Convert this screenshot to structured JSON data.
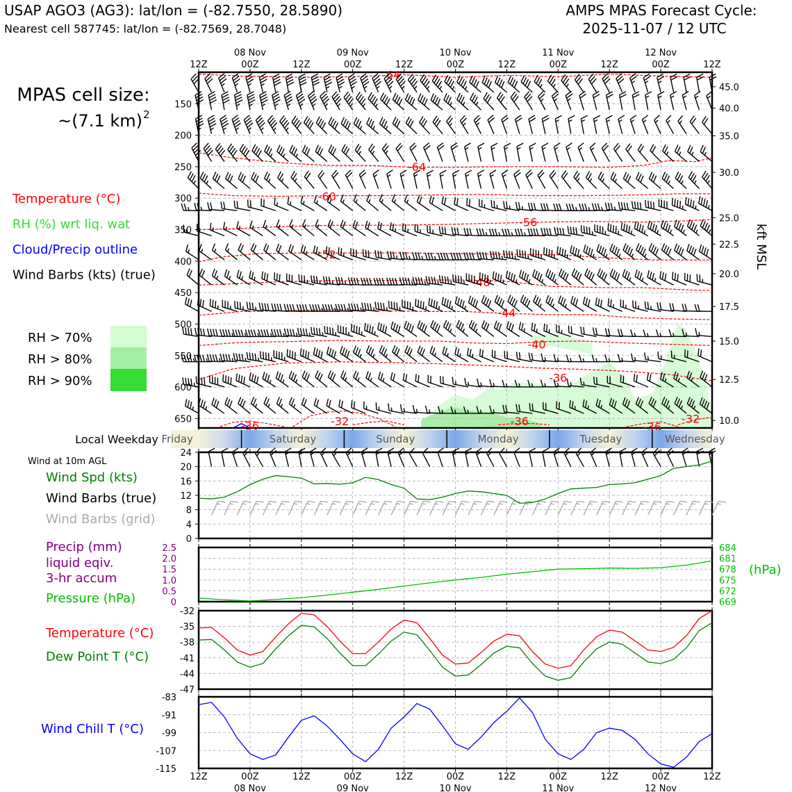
{
  "header": {
    "station_line": "USAP AGO3 (AG3): lat/lon = (-82.7550, 28.5890)",
    "cell_line": "Nearest cell 587745: lat/lon = (-82.7569, 28.7048)",
    "forecast_title": "AMPS MPAS Forecast Cycle:",
    "forecast_cycle": "2025-11-07 / 12 UTC"
  },
  "cell_size": {
    "label": "MPAS cell size:",
    "value": "~(7.1 km)",
    "exponent": "2"
  },
  "time_axis": {
    "hour_labels": [
      "12Z",
      "00Z",
      "12Z",
      "00Z",
      "12Z",
      "00Z",
      "12Z",
      "00Z",
      "12Z",
      "00Z",
      "12Z"
    ],
    "date_labels": [
      "08 Nov",
      "09 Nov",
      "10 Nov",
      "11 Nov",
      "12 Nov"
    ],
    "date_label_indices": [
      1,
      3,
      5,
      7,
      9
    ],
    "start": 0,
    "end": 120,
    "step": 12
  },
  "upper_panel": {
    "legend": [
      {
        "text": "Temperature (°C)",
        "color": "#ff0000"
      },
      {
        "text": "RH (%) wrt liq. wat",
        "color": "#33dd33"
      },
      {
        "text": "Cloud/Precip outline",
        "color": "#0000ff"
      },
      {
        "text": "Wind Barbs (kts) (true)",
        "color": "#000000"
      }
    ],
    "rh_legend": [
      {
        "text": "RH > 70%",
        "color": "#d2fcd2"
      },
      {
        "text": "RH > 80%",
        "color": "#a3eea3"
      },
      {
        "text": "RH > 90%",
        "color": "#33dd33"
      }
    ],
    "pressure_ticks": [
      150,
      200,
      250,
      300,
      350,
      400,
      450,
      500,
      550,
      600,
      650
    ],
    "pressure_range": [
      100,
      665
    ],
    "height_ticks": [
      {
        "kft": "45.0",
        "p": 123
      },
      {
        "kft": "40.0",
        "p": 157
      },
      {
        "kft": "35.0",
        "p": 201
      },
      {
        "kft": "30.0",
        "p": 259
      },
      {
        "kft": "25.0",
        "p": 331
      },
      {
        "kft": "22.5",
        "p": 373
      },
      {
        "kft": "20.0",
        "p": 420
      },
      {
        "kft": "17.5",
        "p": 472
      },
      {
        "kft": "15.0",
        "p": 527
      },
      {
        "kft": "12.5",
        "p": 588
      },
      {
        "kft": "10.0",
        "p": 653
      }
    ],
    "height_axis_label": "kft MSL",
    "temperature_contours": [
      {
        "label": "-64",
        "x": [
          0,
          10,
          24,
          36,
          48,
          60,
          72,
          84,
          96,
          108,
          120
        ],
        "p": [
          103,
          106,
          108,
          107,
          104,
          108,
          105,
          107,
          103,
          106,
          108
        ],
        "label_at": [
          45,
          104
        ]
      },
      {
        "label": "-64",
        "x": [
          0,
          8,
          20,
          30,
          40,
          50,
          60,
          70,
          84,
          96,
          104,
          110,
          116,
          120
        ],
        "p": [
          228,
          236,
          244,
          248,
          248,
          251,
          251,
          250,
          250,
          251,
          248,
          240,
          242,
          236
        ],
        "label_at": [
          51,
          250
        ]
      },
      {
        "label": "-60",
        "x": [
          0,
          8,
          18,
          30,
          42,
          54,
          66,
          78,
          90,
          102,
          112,
          120
        ],
        "p": [
          292,
          296,
          297,
          296,
          296,
          295,
          294,
          296,
          296,
          295,
          293,
          293
        ],
        "label_at": [
          30,
          297
        ]
      },
      {
        "label": "-56",
        "x": [
          0,
          10,
          20,
          32,
          44,
          56,
          68,
          80,
          92,
          104,
          114,
          120
        ],
        "p": [
          350,
          348,
          345,
          343,
          343,
          342,
          340,
          338,
          337,
          338,
          336,
          334
        ],
        "label_at": [
          77,
          338
        ]
      },
      {
        "label": "-52",
        "x": [
          0,
          6,
          14,
          24,
          36,
          48,
          60,
          72,
          84,
          96,
          106,
          114,
          120
        ],
        "p": [
          401,
          393,
          388,
          387,
          387,
          387,
          388,
          389,
          390,
          395,
          398,
          398,
          398
        ],
        "label_at": [
          30,
          389
        ]
      },
      {
        "label": "-48",
        "x": [
          0,
          8,
          18,
          30,
          42,
          52,
          62,
          72,
          82,
          94,
          104,
          112,
          120
        ],
        "p": [
          438,
          436,
          433,
          431,
          431,
          430,
          430,
          432,
          440,
          442,
          442,
          445,
          447
        ],
        "label_at": [
          66,
          433
        ]
      },
      {
        "label": "-44",
        "x": [
          0,
          10,
          20,
          32,
          44,
          54,
          62,
          72,
          82,
          92,
          102,
          112,
          120
        ],
        "p": [
          486,
          480,
          479,
          477,
          479,
          480,
          480,
          483,
          485,
          485,
          490,
          492,
          493
        ],
        "label_at": [
          72,
          482
        ]
      },
      {
        "label": "-40",
        "x": [
          0,
          10,
          20,
          32,
          44,
          56,
          64,
          72,
          80,
          90,
          100,
          110,
          120
        ],
        "p": [
          534,
          529,
          528,
          526,
          527,
          527,
          530,
          531,
          528,
          527,
          530,
          532,
          534
        ],
        "label_at": [
          79,
          532
        ]
      },
      {
        "label": "-36",
        "x": [
          0,
          8,
          20,
          32,
          44,
          56,
          68,
          80,
          90,
          100,
          110,
          120
        ],
        "p": [
          588,
          571,
          562,
          560,
          561,
          563,
          566,
          570,
          572,
          575,
          580,
          590
        ],
        "label_at": [
          84,
          585
        ]
      },
      {
        "label": "-36",
        "x": [
          5,
          8,
          12,
          16,
          20
        ],
        "p": [
          663,
          656,
          654,
          658,
          663
        ],
        "label_at": [
          12,
          661
        ]
      },
      {
        "label": "-32",
        "x": [
          22,
          26,
          30,
          34,
          38,
          42,
          46
        ],
        "p": [
          663,
          646,
          640,
          638,
          642,
          650,
          663
        ],
        "label_at": [
          33,
          654
        ]
      },
      {
        "label": "-36",
        "x": [
          70,
          74,
          78,
          82
        ],
        "p": [
          660,
          658,
          658,
          660
        ],
        "label_at": [
          75,
          654
        ]
      },
      {
        "label": "-36",
        "x": [
          100,
          104,
          108,
          112
        ],
        "p": [
          663,
          658,
          655,
          663
        ],
        "label_at": [
          106,
          663
        ]
      },
      {
        "label": "-32",
        "x": [
          112,
          116,
          120
        ],
        "p": [
          660,
          652,
          648
        ],
        "label_at": [
          115,
          650
        ]
      },
      {
        "label": "",
        "x": [
          36,
          40,
          44,
          48
        ],
        "p": [
          660,
          656,
          654,
          660
        ],
        "label_at": [
          40,
          663
        ]
      }
    ],
    "rh_regions": [
      {
        "level": 70,
        "x": [
          52,
          56,
          60,
          64,
          68,
          70,
          74,
          80,
          86,
          90,
          96,
          100,
          102,
          106,
          108,
          112,
          114,
          116,
          118,
          120
        ],
        "p_top": [
          655,
          630,
          612,
          620,
          600,
          605,
          592,
          596,
          600,
          583,
          560,
          588,
          620,
          610,
          580,
          500,
          510,
          540,
          580,
          640
        ],
        "p_bot": [
          665,
          665,
          665,
          665,
          665,
          665,
          665,
          665,
          665,
          665,
          665,
          665,
          665,
          665,
          665,
          665,
          665,
          665,
          665,
          665
        ]
      },
      {
        "level": 70,
        "x": [
          78,
          82,
          86,
          90,
          92
        ],
        "p": [
          520,
          515,
          520,
          525,
          530
        ]
      },
      {
        "level": 80,
        "x": [
          52,
          56,
          60,
          64,
          68,
          72,
          76,
          80
        ],
        "p_top": [
          652,
          640,
          632,
          638,
          640,
          648,
          650,
          658
        ],
        "p_bot": [
          665,
          665,
          665,
          665,
          665,
          665,
          665,
          665
        ]
      }
    ]
  },
  "weekday_bar": {
    "label": "Local Weekday",
    "days": [
      "Friday",
      "Saturday",
      "Sunday",
      "Monday",
      "Tuesday",
      "Wednesday"
    ],
    "day_boundaries": [
      10,
      34,
      58,
      82,
      106
    ]
  },
  "wind_panel": {
    "title": "Wind at 10m AGL",
    "legend": [
      {
        "text": "Wind Spd (kts)",
        "color": "#008000"
      },
      {
        "text": "Wind Barbs (true)",
        "color": "#000000"
      },
      {
        "text": "Wind Barbs (grid)",
        "color": "#aaaaaa"
      }
    ],
    "yticks": [
      0,
      4,
      8,
      12,
      16,
      20,
      24
    ],
    "ylim": [
      0,
      24
    ],
    "x": [
      0,
      3,
      6,
      9,
      12,
      15,
      18,
      21,
      24,
      27,
      30,
      33,
      36,
      39,
      42,
      45,
      48,
      51,
      54,
      57,
      60,
      63,
      66,
      69,
      72,
      75,
      78,
      81,
      84,
      87,
      90,
      93,
      96,
      99,
      102,
      105,
      108,
      111,
      114,
      117,
      120
    ],
    "speed": [
      11.2,
      11,
      11.5,
      13,
      15,
      16.5,
      17.5,
      17.2,
      16.8,
      15.2,
      15.3,
      15.1,
      15.5,
      17,
      16.4,
      15,
      14,
      11,
      10.8,
      11.5,
      12.5,
      13.2,
      13,
      12.5,
      12,
      9.8,
      10,
      11,
      12.5,
      13.8,
      14,
      14.2,
      15,
      15.2,
      15.5,
      16.5,
      17.5,
      19.5,
      20,
      20.5,
      21.5
    ]
  },
  "precip_panel": {
    "legend": [
      {
        "text": "Precip (mm)",
        "color": "#800080"
      },
      {
        "text": "liquid eqiv.",
        "color": "#800080"
      },
      {
        "text": "3-hr accum",
        "color": "#800080"
      },
      {
        "text": "Pressure (hPa)",
        "color": "#00c000"
      }
    ],
    "precip_ticks": [
      "2.5",
      "2.0",
      "1.5",
      "1.0",
      "0.5",
      "0"
    ],
    "precip_range": [
      0,
      2.5
    ],
    "pressure_ticks": [
      684,
      681,
      678,
      675,
      672,
      669
    ],
    "pressure_range": [
      669,
      684
    ],
    "pressure_unit": "(hPa)",
    "x": [
      0,
      6,
      12,
      18,
      24,
      30,
      36,
      42,
      48,
      54,
      60,
      66,
      72,
      78,
      84,
      90,
      96,
      102,
      108,
      114,
      120
    ],
    "pressure": [
      670,
      669.5,
      669.2,
      669.6,
      670.1,
      670.8,
      671.6,
      672.4,
      673.3,
      674.2,
      675,
      675.7,
      676.6,
      677.3,
      678,
      678.1,
      678.3,
      678.2,
      678.4,
      679.1,
      680.3
    ]
  },
  "temp_panel": {
    "legend": [
      {
        "text": "Temperature (°C)",
        "color": "#ff0000"
      },
      {
        "text": "Dew Point T (°C)",
        "color": "#008000"
      }
    ],
    "yticks": [
      -32,
      -35,
      -38,
      -41,
      -44,
      -47
    ],
    "ylim": [
      -47,
      -32
    ],
    "x": [
      0,
      3,
      6,
      9,
      12,
      15,
      18,
      21,
      24,
      27,
      30,
      33,
      36,
      39,
      42,
      45,
      48,
      51,
      54,
      57,
      60,
      63,
      66,
      69,
      72,
      75,
      78,
      81,
      84,
      87,
      90,
      93,
      96,
      99,
      102,
      105,
      108,
      111,
      114,
      117,
      120
    ],
    "temperature": [
      -35.3,
      -35.2,
      -37.2,
      -39.5,
      -40.5,
      -39.8,
      -37,
      -34.5,
      -32.5,
      -32.8,
      -35,
      -37.8,
      -40.2,
      -40.2,
      -38,
      -35.5,
      -33.8,
      -34.3,
      -37.3,
      -40.5,
      -42.2,
      -42,
      -40,
      -37.8,
      -36.5,
      -36.8,
      -39.8,
      -42.2,
      -43,
      -42.5,
      -39.5,
      -37,
      -35.7,
      -36.1,
      -37.8,
      -39.5,
      -39.8,
      -39,
      -36.8,
      -33.5,
      -32
    ]
  },
  "wind_chill_panel": {
    "legend": [
      {
        "text": "Wind Chill T (°C)",
        "color": "#0000ff"
      }
    ],
    "yticks": [
      -83,
      -91,
      -99,
      -107,
      -115
    ],
    "ylim": [
      -115,
      -83
    ],
    "x": [
      0,
      3,
      6,
      9,
      12,
      15,
      18,
      21,
      24,
      27,
      30,
      33,
      36,
      39,
      42,
      45,
      48,
      51,
      54,
      57,
      60,
      63,
      66,
      69,
      72,
      75,
      78,
      81,
      84,
      87,
      90,
      93,
      96,
      99,
      102,
      105,
      108,
      111,
      114,
      117,
      120
    ],
    "wind_chill": [
      -86.5,
      -85.5,
      -92,
      -101.5,
      -108.5,
      -111,
      -109,
      -101,
      -93.5,
      -91.5,
      -96,
      -102,
      -108.5,
      -112,
      -106.5,
      -97,
      -92,
      -86,
      -88.5,
      -96,
      -104,
      -106.5,
      -101,
      -94.5,
      -89.5,
      -83.5,
      -90,
      -102,
      -108.5,
      -111,
      -106.5,
      -99,
      -97,
      -98,
      -102,
      -108.5,
      -113,
      -114.5,
      -110,
      -103,
      -99.5
    ]
  }
}
